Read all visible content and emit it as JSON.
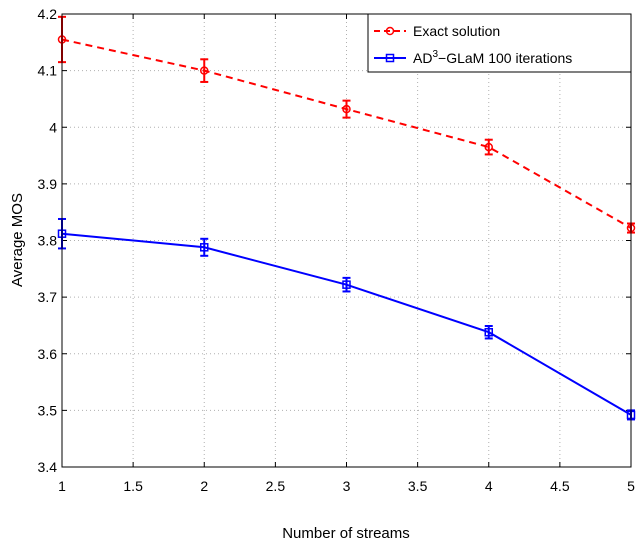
{
  "chart_data": {
    "type": "line",
    "xlabel": "Number of streams",
    "ylabel": "Average MOS",
    "xlim": [
      1,
      5
    ],
    "ylim": [
      3.4,
      4.2
    ],
    "grid": true,
    "legend_position": "top-right",
    "x_ticks": [
      "1",
      "1.5",
      "2",
      "2.5",
      "3",
      "3.5",
      "4",
      "4.5",
      "5"
    ],
    "y_ticks": [
      "3.4",
      "3.5",
      "3.6",
      "3.7",
      "3.8",
      "3.9",
      "4",
      "4.1",
      "4.2"
    ],
    "x": [
      1,
      2,
      3,
      4,
      5
    ],
    "series": [
      {
        "name": "Exact solution",
        "color": "#ff0000",
        "line_style": "dashed",
        "marker": "circle",
        "values": [
          4.155,
          4.1,
          4.032,
          3.965,
          3.822
        ],
        "error": [
          0.04,
          0.02,
          0.015,
          0.013,
          0.008
        ]
      },
      {
        "name_main": "AD",
        "name_sup": "3",
        "name_rest": "−GLaM 100 iterations",
        "color": "#0000ff",
        "line_style": "solid",
        "marker": "square",
        "values": [
          3.812,
          3.788,
          3.722,
          3.638,
          3.492
        ],
        "error": [
          0.026,
          0.015,
          0.012,
          0.011,
          0.008
        ]
      }
    ]
  }
}
